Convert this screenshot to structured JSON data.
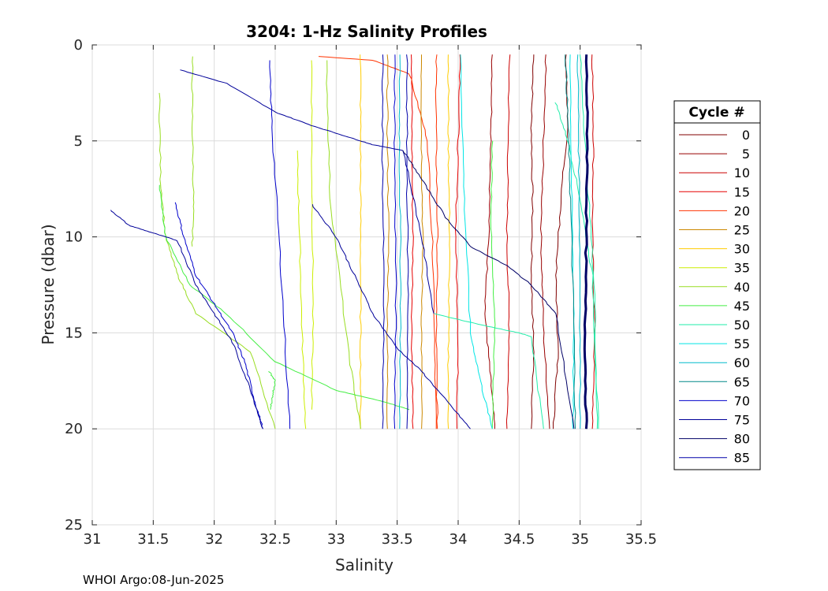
{
  "footer": "WHOI Argo:08-Jun-2025",
  "chart_data": {
    "type": "line",
    "title": "3204: 1-Hz Salinity Profiles",
    "xlabel": "Salinity",
    "ylabel": "Pressure (dbar)",
    "xlim": [
      31,
      35.5
    ],
    "ylim": [
      0,
      25
    ],
    "y_reversed": true,
    "grid": true,
    "xticks": [
      "31",
      "31.5",
      "32",
      "32.5",
      "33",
      "33.5",
      "34",
      "34.5",
      "35",
      "35.5"
    ],
    "yticks": [
      "0",
      "5",
      "10",
      "15",
      "20",
      "25"
    ],
    "legend": {
      "title": "Cycle #",
      "placement": "right",
      "entries": [
        {
          "label": "0",
          "color": "#800000"
        },
        {
          "label": "5",
          "color": "#990000"
        },
        {
          "label": "10",
          "color": "#cc0000"
        },
        {
          "label": "15",
          "color": "#e60000"
        },
        {
          "label": "20",
          "color": "#ff3300"
        },
        {
          "label": "25",
          "color": "#cc8800"
        },
        {
          "label": "30",
          "color": "#ffcc00"
        },
        {
          "label": "35",
          "color": "#ccee00"
        },
        {
          "label": "40",
          "color": "#99dd22"
        },
        {
          "label": "45",
          "color": "#44ee44"
        },
        {
          "label": "50",
          "color": "#22eeaa"
        },
        {
          "label": "55",
          "color": "#00e5e5"
        },
        {
          "label": "60",
          "color": "#00bbcc"
        },
        {
          "label": "65",
          "color": "#008888"
        },
        {
          "label": "70",
          "color": "#0000cc"
        },
        {
          "label": "75",
          "color": "#000099"
        },
        {
          "label": "80",
          "color": "#000066"
        },
        {
          "label": "85",
          "color": "#0000aa"
        }
      ]
    },
    "series": [
      {
        "color": "#800000",
        "x": [
          34.62,
          34.6,
          34.61,
          34.6,
          34.62,
          34.6
        ],
        "y": [
          0.5,
          4,
          8,
          12,
          16,
          20
        ]
      },
      {
        "color": "#800000",
        "x": [
          34.88,
          34.9,
          34.85,
          34.8,
          34.82,
          34.78
        ],
        "y": [
          0.5,
          4,
          7.5,
          12,
          16,
          20
        ]
      },
      {
        "color": "#990000",
        "x": [
          34.28,
          34.27,
          34.25,
          34.22,
          34.26,
          34.3
        ],
        "y": [
          0.5,
          5,
          10,
          14,
          17,
          20
        ]
      },
      {
        "color": "#990000",
        "x": [
          34.72,
          34.7,
          34.68,
          34.7,
          34.75
        ],
        "y": [
          0.5,
          5,
          10,
          15,
          20
        ]
      },
      {
        "color": "#cc0000",
        "x": [
          35.1,
          35.11,
          35.1,
          35.12,
          35.1
        ],
        "y": [
          0.5,
          5,
          10,
          15,
          20
        ]
      },
      {
        "color": "#cc0000",
        "x": [
          34.42,
          34.41,
          34.4,
          34.42,
          34.4
        ],
        "y": [
          0.5,
          5,
          10,
          15,
          20
        ]
      },
      {
        "color": "#e60000",
        "x": [
          34.02,
          34.0,
          33.98,
          34.0,
          33.99
        ],
        "y": [
          0.5,
          5,
          10,
          15,
          20
        ]
      },
      {
        "color": "#e60000",
        "x": [
          33.62,
          33.62,
          33.63,
          33.62,
          33.63
        ],
        "y": [
          0.5,
          5,
          10,
          15,
          20
        ]
      },
      {
        "color": "#ff3300",
        "x": [
          32.85,
          33.3,
          33.6,
          33.75,
          33.8,
          33.82
        ],
        "y": [
          0.6,
          0.8,
          1.5,
          5,
          12,
          20
        ]
      },
      {
        "color": "#ff3300",
        "x": [
          33.82,
          33.82,
          33.83,
          33.82,
          33.83
        ],
        "y": [
          0.5,
          5,
          10,
          15,
          20
        ]
      },
      {
        "color": "#cc8800",
        "x": [
          33.7,
          33.7,
          33.71,
          33.7,
          33.7
        ],
        "y": [
          0.5,
          5,
          10,
          15,
          20
        ]
      },
      {
        "color": "#cc8800",
        "x": [
          33.42,
          33.42,
          33.43,
          33.42,
          33.42
        ],
        "y": [
          0.5,
          5,
          10,
          15,
          20
        ]
      },
      {
        "color": "#ffcc00",
        "x": [
          33.92,
          33.92,
          33.93,
          33.92,
          33.92
        ],
        "y": [
          0.5,
          5,
          10,
          15,
          20
        ]
      },
      {
        "color": "#ffcc00",
        "x": [
          33.2,
          33.2,
          33.2,
          33.2,
          33.2
        ],
        "y": [
          0.5,
          5,
          10,
          15,
          20
        ]
      },
      {
        "color": "#ccee00",
        "x": [
          32.8,
          32.8,
          32.81,
          32.8
        ],
        "y": [
          0.8,
          6,
          13,
          19
        ]
      },
      {
        "color": "#ccee00",
        "x": [
          32.68,
          32.7,
          32.72,
          32.75
        ],
        "y": [
          5.5,
          10,
          15,
          20
        ]
      },
      {
        "color": "#99dd22",
        "x": [
          31.82,
          31.82,
          31.83,
          31.82
        ],
        "y": [
          0.6,
          4,
          8,
          10.5
        ]
      },
      {
        "color": "#99dd22",
        "x": [
          31.55,
          31.56,
          31.6,
          31.7,
          31.85,
          32.3,
          32.5
        ],
        "y": [
          2.5,
          7,
          10,
          12,
          14,
          16,
          20
        ]
      },
      {
        "color": "#99dd22",
        "x": [
          32.92,
          32.95,
          33.1,
          33.2
        ],
        "y": [
          0.8,
          8,
          16,
          20
        ]
      },
      {
        "color": "#44ee44",
        "x": [
          31.55,
          31.6,
          31.8,
          32.1,
          32.5,
          33.0,
          33.4,
          33.6
        ],
        "y": [
          7.3,
          10,
          12.5,
          14,
          16.5,
          18,
          18.6,
          19
        ]
      },
      {
        "color": "#44ee44",
        "x": [
          32.45,
          32.5,
          32.48,
          32.46
        ],
        "y": [
          17,
          17.5,
          18.2,
          19
        ]
      },
      {
        "color": "#44ee44",
        "x": [
          34.28,
          34.27,
          34.3,
          34.28
        ],
        "y": [
          5,
          10,
          15,
          20
        ]
      },
      {
        "color": "#22eeaa",
        "x": [
          34.8,
          34.9,
          35.0,
          35.1,
          35.15
        ],
        "y": [
          3,
          5,
          8,
          12,
          20
        ]
      },
      {
        "color": "#22eeaa",
        "x": [
          33.8,
          34.2,
          34.5,
          34.6,
          34.7
        ],
        "y": [
          14,
          14.6,
          15,
          15.2,
          20
        ]
      },
      {
        "color": "#22eeaa",
        "x": [
          35.0,
          35.05,
          35.12,
          35.14
        ],
        "y": [
          0.5,
          6,
          13,
          20
        ]
      },
      {
        "color": "#00e5e5",
        "x": [
          34.02,
          34.05,
          34.1,
          34.2,
          34.28
        ],
        "y": [
          0.5,
          8,
          15,
          18,
          20
        ]
      },
      {
        "color": "#00e5e5",
        "x": [
          34.92,
          34.93,
          34.95,
          34.94
        ],
        "y": [
          0.5,
          8,
          14,
          20
        ]
      },
      {
        "color": "#00bbcc",
        "x": [
          33.52,
          33.52,
          33.53,
          33.52
        ],
        "y": [
          0.5,
          6,
          13,
          20
        ]
      },
      {
        "color": "#00bbcc",
        "x": [
          34.98,
          34.99,
          35.0,
          35.0
        ],
        "y": [
          0.5,
          6,
          13,
          20
        ]
      },
      {
        "color": "#008888",
        "x": [
          34.88,
          34.9,
          34.92,
          34.95,
          34.96
        ],
        "y": [
          0.5,
          4,
          8,
          15,
          20
        ]
      },
      {
        "color": "#0000cc",
        "x": [
          33.48,
          33.48,
          33.49,
          33.48
        ],
        "y": [
          0.5,
          6,
          13,
          20
        ]
      },
      {
        "color": "#0000cc",
        "x": [
          31.68,
          31.75,
          31.85,
          32.0,
          32.15,
          32.25,
          32.33,
          32.4
        ],
        "y": [
          8.2,
          10,
          12,
          13.5,
          15,
          16.5,
          18.5,
          20
        ]
      },
      {
        "color": "#0000cc",
        "x": [
          32.45,
          32.48,
          32.55,
          32.62
        ],
        "y": [
          0.8,
          5,
          12,
          20
        ]
      },
      {
        "color": "#000099",
        "x": [
          31.15,
          31.3,
          31.5,
          31.7,
          31.85,
          32.0,
          32.15,
          32.3,
          32.4
        ],
        "y": [
          8.6,
          9.4,
          9.8,
          10.2,
          12.5,
          14,
          15.5,
          18,
          20
        ]
      },
      {
        "color": "#000099",
        "x": [
          31.72,
          32.1,
          32.5,
          32.8,
          33.1,
          33.3,
          33.55,
          33.7,
          33.8
        ],
        "y": [
          1.3,
          2,
          3.5,
          4.2,
          4.8,
          5.2,
          5.5,
          10,
          14
        ]
      },
      {
        "color": "#000099",
        "x": [
          32.8,
          33.0,
          33.15,
          33.3,
          33.5,
          33.7,
          33.9,
          34.1
        ],
        "y": [
          8.3,
          10,
          12,
          14,
          15.8,
          17,
          18.5,
          20
        ]
      },
      {
        "color": "#000066",
        "x": [
          35.05,
          35.06,
          35.05,
          35.04,
          35.05
        ],
        "y": [
          0.5,
          5,
          10,
          15,
          20
        ]
      },
      {
        "color": "#000066",
        "x": [
          33.55,
          33.7,
          33.9,
          34.1,
          34.4,
          34.6,
          34.8,
          34.95
        ],
        "y": [
          5.5,
          7,
          9,
          10.5,
          11.5,
          12.5,
          14,
          20
        ]
      },
      {
        "color": "#0000aa",
        "x": [
          33.38,
          33.38,
          33.39,
          33.38
        ],
        "y": [
          0.5,
          6,
          13,
          20
        ]
      },
      {
        "color": "#0000aa",
        "x": [
          33.58,
          33.58,
          33.59,
          33.58
        ],
        "y": [
          0.5,
          6,
          13,
          20
        ]
      }
    ]
  }
}
